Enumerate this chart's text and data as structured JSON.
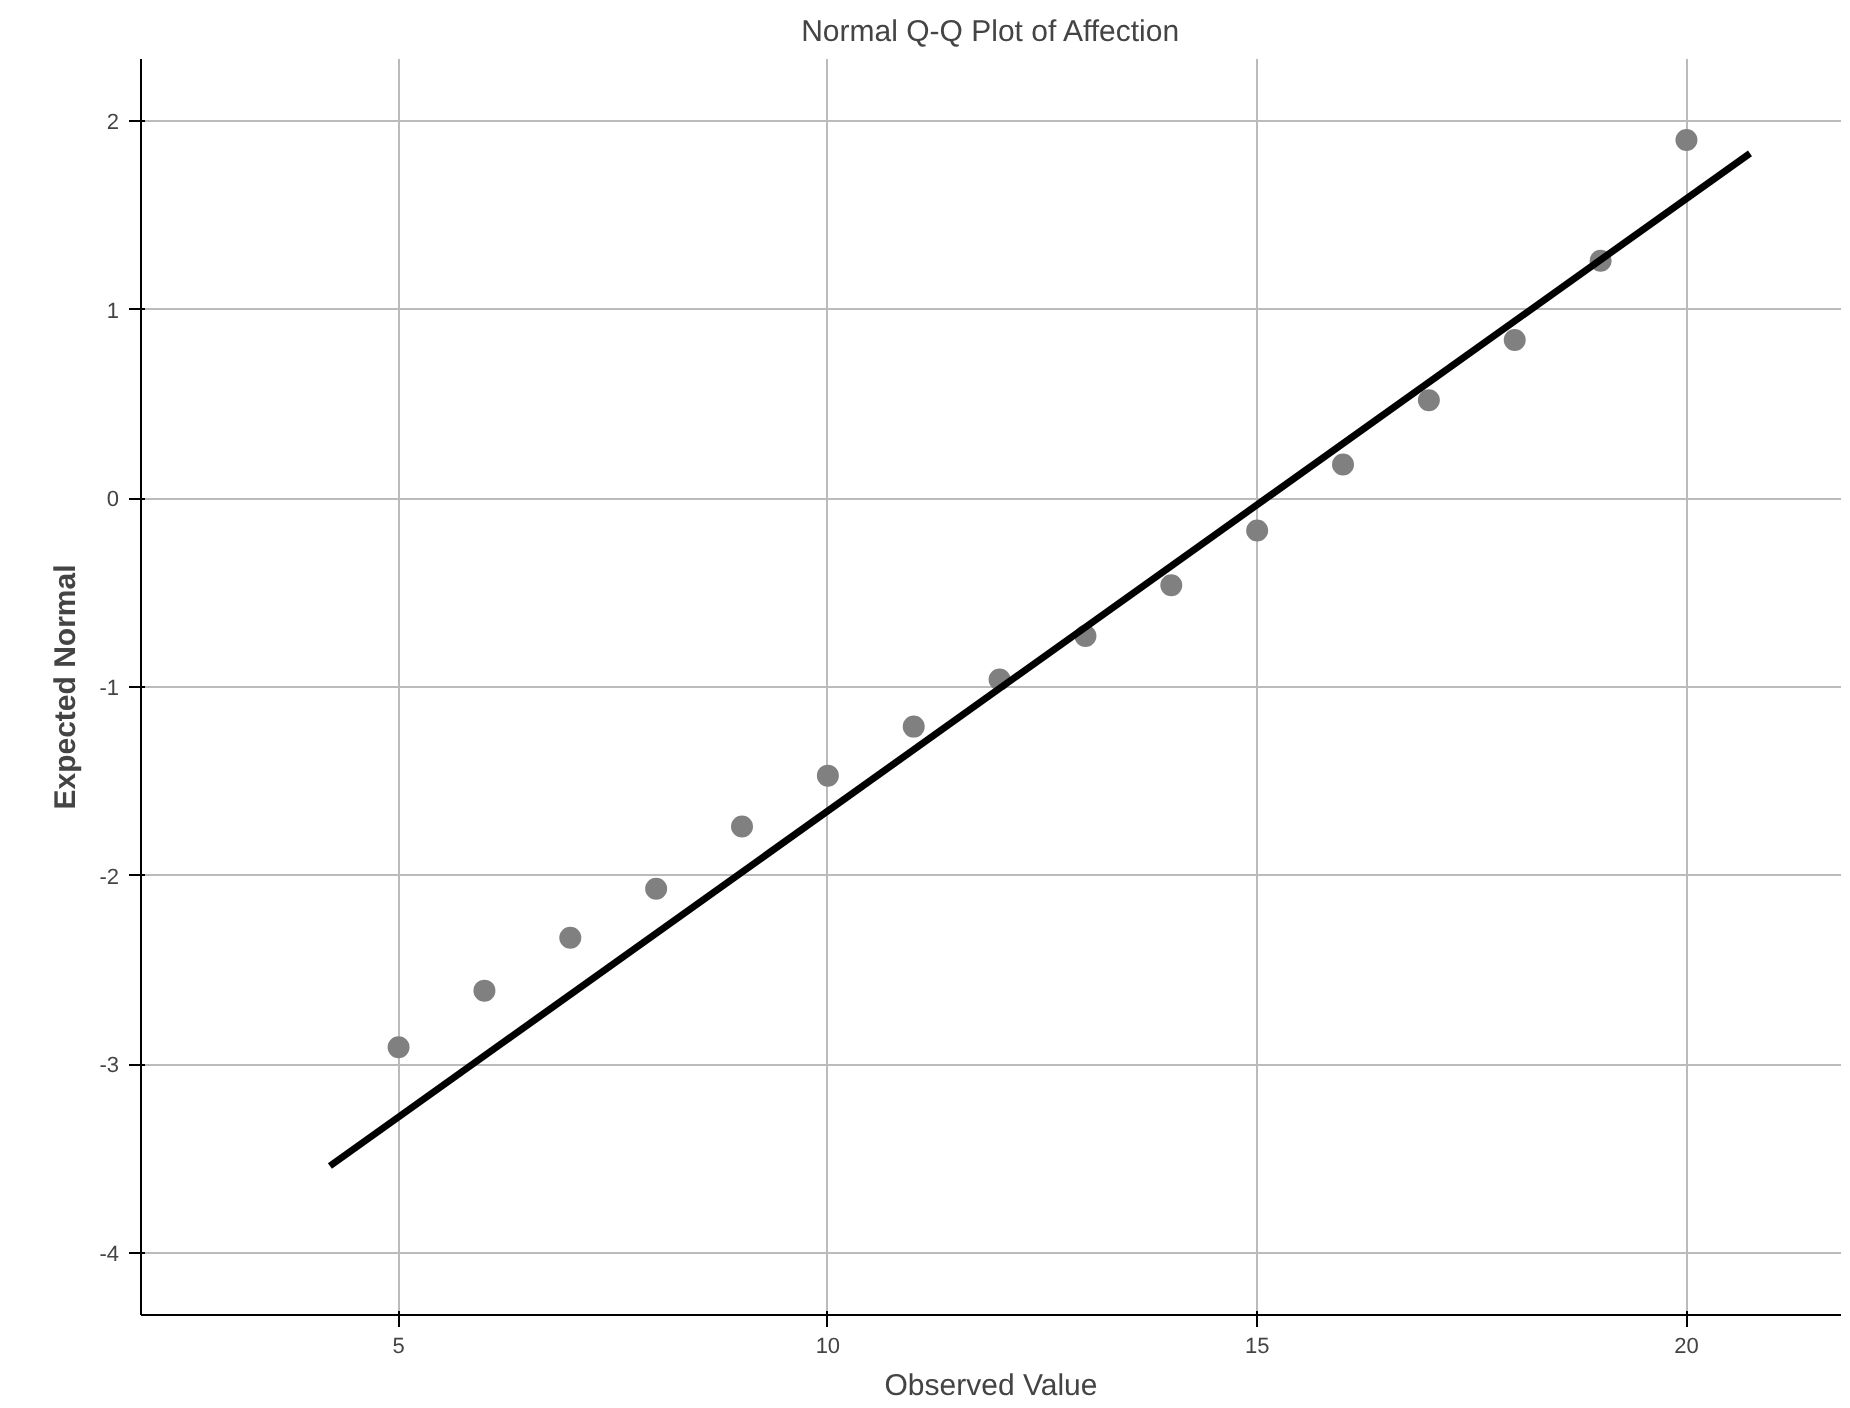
{
  "chart_data": {
    "type": "scatter",
    "title": "Normal Q-Q Plot of Affection",
    "xlabel": "Observed Value",
    "ylabel": "Expected Normal",
    "xlim": [
      2.0,
      21.8
    ],
    "ylim": [
      -4.33,
      2.33
    ],
    "xticks": [
      5,
      10,
      15,
      20
    ],
    "yticks": [
      -4,
      -3,
      -2,
      -1,
      0,
      1,
      2
    ],
    "grid": true,
    "marker": "circle",
    "series": [
      {
        "color": "#808080",
        "x": [
          5,
          6,
          7,
          8,
          9,
          10,
          11,
          12,
          13,
          14,
          15,
          16,
          17,
          18,
          19,
          20
        ],
        "values": [
          -2.91,
          -2.61,
          -2.33,
          -2.07,
          -1.74,
          -1.47,
          -1.21,
          -0.96,
          -0.73,
          -0.46,
          -0.17,
          0.18,
          0.52,
          0.84,
          1.26,
          1.9
        ]
      },
      {
        "type": "line",
        "marker": "none",
        "color": "#000000",
        "x": [
          4.2,
          20.74
        ],
        "values": [
          -3.54,
          1.83
        ]
      }
    ]
  }
}
